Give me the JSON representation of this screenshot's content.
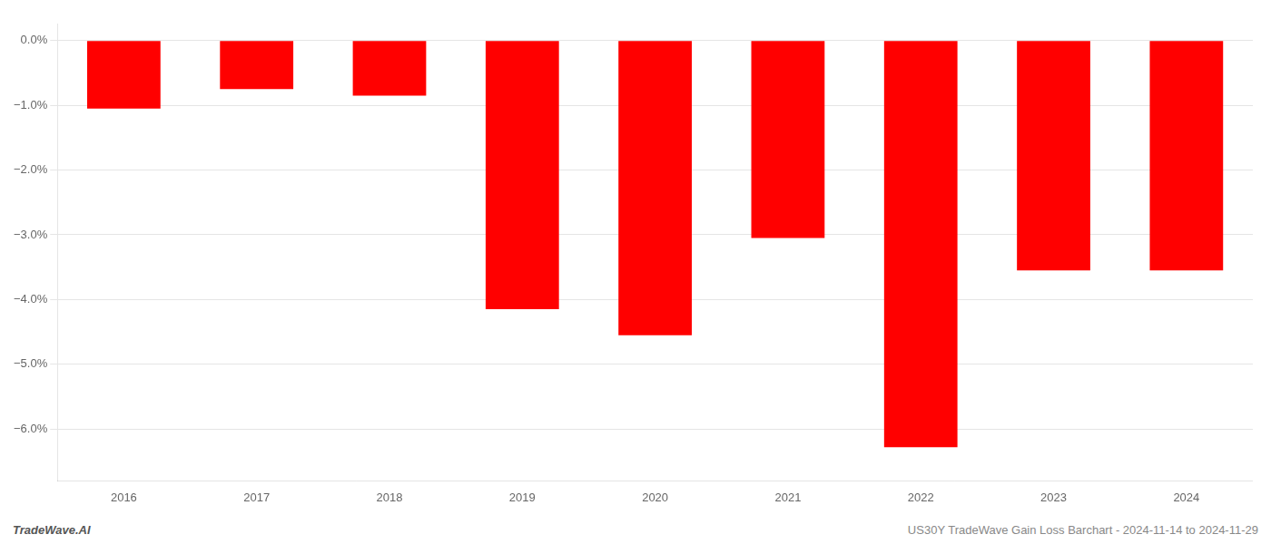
{
  "chart_data": {
    "type": "bar",
    "categories": [
      "2016",
      "2017",
      "2018",
      "2019",
      "2020",
      "2021",
      "2022",
      "2023",
      "2024"
    ],
    "values": [
      -1.05,
      -0.75,
      -0.85,
      -4.15,
      -4.55,
      -3.05,
      -6.28,
      -3.55,
      -3.55
    ],
    "color": "#ff0000",
    "ylim": [
      -6.8,
      0.25
    ],
    "yticks": [
      {
        "value": 0.0,
        "label": "0.0%"
      },
      {
        "value": -1.0,
        "label": "−1.0%"
      },
      {
        "value": -2.0,
        "label": "−2.0%"
      },
      {
        "value": -3.0,
        "label": "−3.0%"
      },
      {
        "value": -4.0,
        "label": "−4.0%"
      },
      {
        "value": -5.0,
        "label": "−5.0%"
      },
      {
        "value": -6.0,
        "label": "−6.0%"
      }
    ],
    "grid": true,
    "annotations": [
      "TradeWave.AI",
      "US30Y TradeWave Gain Loss Barchart - 2024-11-14 to 2024-11-29"
    ]
  }
}
